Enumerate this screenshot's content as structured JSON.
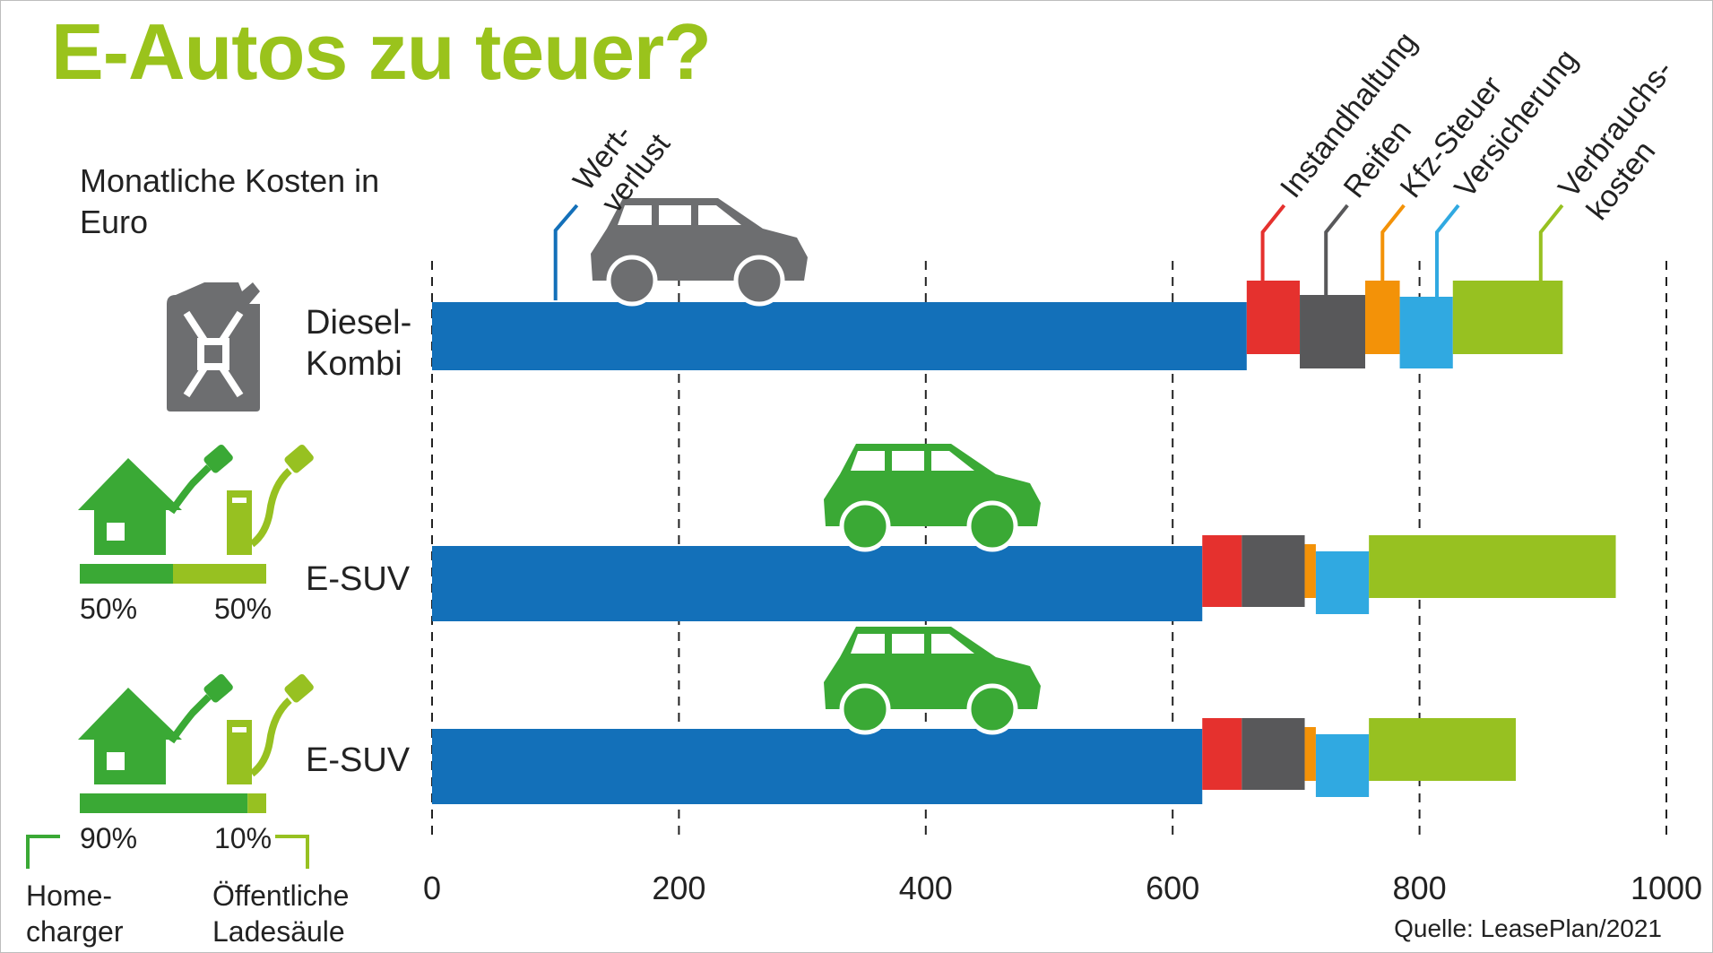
{
  "title": "E-Autos zu teuer?",
  "subtitle": "Monatliche Kosten in Euro",
  "source": "Quelle: LeasePlan/2021",
  "colors": {
    "title": "#9ac31c",
    "Wertverlust": "#1370b9",
    "Instandhaltung": "#e5312e",
    "Reifen": "#58585a",
    "Kfz-Steuer": "#f39208",
    "Versicherung": "#30a9e1",
    "Verbrauchskosten": "#97c121",
    "home": "#3aa935",
    "public": "#97c121",
    "icon_gray": "#6d6e70"
  },
  "legend": {
    "home_label": "Home-\ncharger",
    "public_label": "Öffentliche\nLadesäule"
  },
  "rows": [
    {
      "label": "Diesel-\nKombi",
      "icon": "jerrycan-icon",
      "car_color": "#6d6e70"
    },
    {
      "label": "E-SUV",
      "icon": "charging-icon",
      "car_color": "#3aa935",
      "home_share": 0.5,
      "public_share": 0.5,
      "home_text": "50%",
      "public_text": "50%"
    },
    {
      "label": "E-SUV",
      "icon": "charging-icon",
      "car_color": "#3aa935",
      "home_share": 0.9,
      "public_share": 0.1,
      "home_text": "90%",
      "public_text": "10%"
    }
  ],
  "chart_data": {
    "type": "bar",
    "orientation": "horizontal",
    "stacked": true,
    "title": "E-Autos zu teuer?",
    "xlim": [
      0,
      1000
    ],
    "xticks": [
      "0",
      "200",
      "400",
      "600",
      "800",
      "1000"
    ],
    "grid": "vertical dashed",
    "categories": [
      "Diesel-Kombi",
      "E-SUV",
      "E-SUV"
    ],
    "segment_labels": [
      "Wert-\nverlust",
      "Instandhaltung",
      "Reifen",
      "Kfz-Steuer",
      "Versicherung",
      "Verbrauchs-\nkosten"
    ],
    "series": [
      {
        "name": "Wertverlust",
        "values": [
          660,
          624,
          624
        ]
      },
      {
        "name": "Instandhaltung",
        "values": [
          43,
          32,
          32
        ]
      },
      {
        "name": "Reifen",
        "values": [
          53,
          51,
          51
        ]
      },
      {
        "name": "Kfz-Steuer",
        "values": [
          28,
          9,
          9
        ]
      },
      {
        "name": "Versicherung",
        "values": [
          43,
          43,
          43
        ]
      },
      {
        "name": "Verbrauchskosten",
        "values": [
          89,
          200,
          119
        ]
      }
    ]
  }
}
